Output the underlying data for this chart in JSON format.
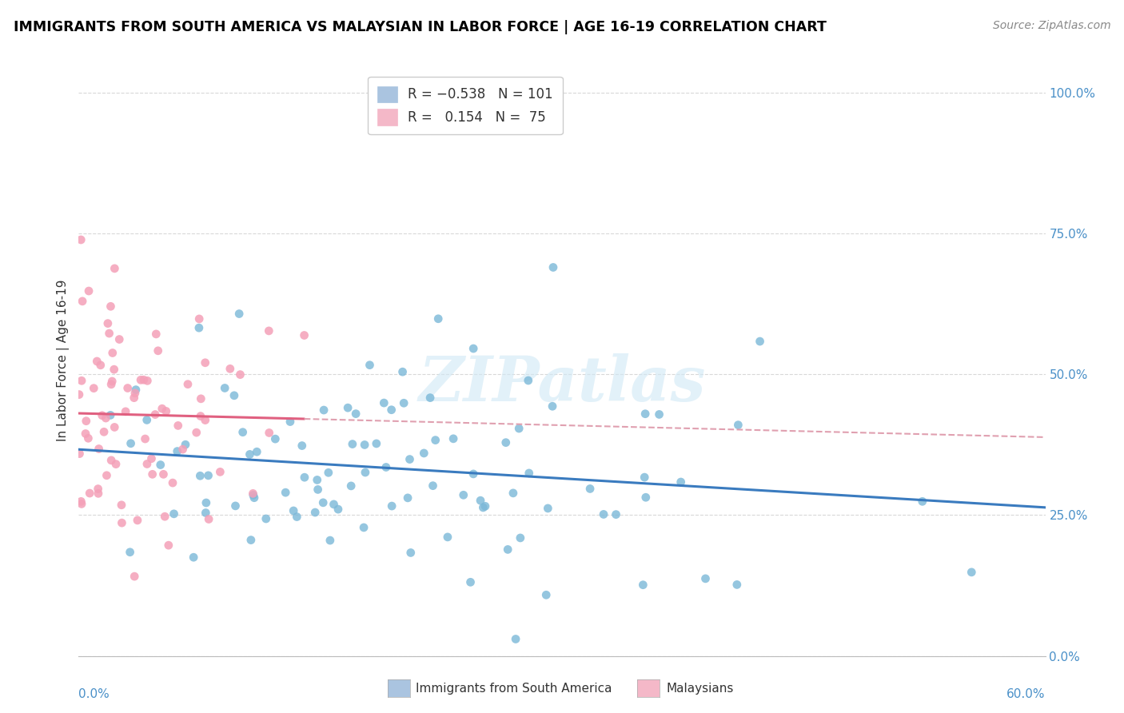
{
  "title": "IMMIGRANTS FROM SOUTH AMERICA VS MALAYSIAN IN LABOR FORCE | AGE 16-19 CORRELATION CHART",
  "source": "Source: ZipAtlas.com",
  "ylabel": "In Labor Force | Age 16-19",
  "right_yticks": [
    "0.0%",
    "25.0%",
    "50.0%",
    "75.0%",
    "100.0%"
  ],
  "right_ytick_vals": [
    0.0,
    0.25,
    0.5,
    0.75,
    1.0
  ],
  "xmin": 0.0,
  "xmax": 0.6,
  "ymin": 0.0,
  "ymax": 1.05,
  "blue_color": "#7bb8d8",
  "pink_color": "#f4a0b8",
  "blue_line_color": "#3a7bbf",
  "pink_line_color": "#e06080",
  "pink_dash_color": "#e0a0b0",
  "blue_R": -0.538,
  "blue_N": 101,
  "pink_R": 0.154,
  "pink_N": 75,
  "blue_seed": 42,
  "pink_seed": 7,
  "legend_blue_color": "#aac4e0",
  "legend_pink_color": "#f4b8c8",
  "watermark_color": "#d0e8f5",
  "grid_color": "#d8d8d8",
  "axis_label_color": "#4a90c8",
  "text_color": "#333333"
}
